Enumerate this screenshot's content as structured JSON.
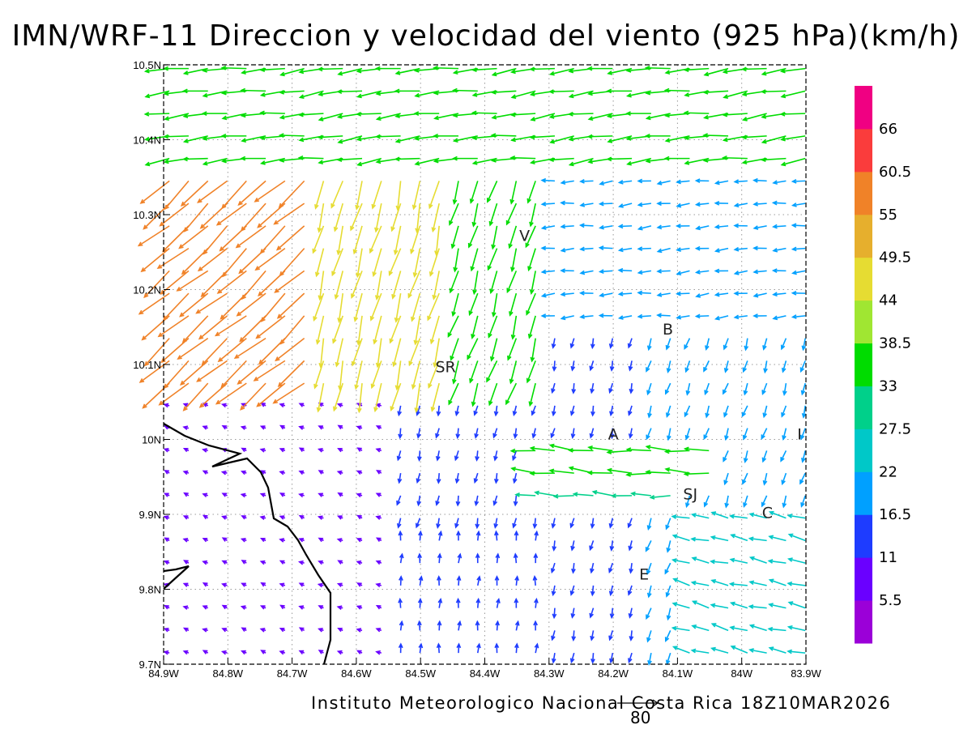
{
  "title": "IMN/WRF-11 Direccion y velocidad del viento (925 hPa)(km/h)",
  "footer": "Instituto Meteorologico Nacional Costa Rica 18Z10MAR2026",
  "reference_vector": {
    "label": "80",
    "value": 80
  },
  "map": {
    "lon_range": [
      -84.9,
      -83.9
    ],
    "lat_range": [
      9.7,
      10.5
    ],
    "grid": "dotted",
    "lon_ticks": [
      "84.9W",
      "84.8W",
      "84.7W",
      "84.6W",
      "84.5W",
      "84.4W",
      "84.3W",
      "84.2W",
      "84.1W",
      "84W",
      "83.9W"
    ],
    "lat_ticks": [
      "9.7N",
      "9.8N",
      "9.9N",
      "10N",
      "10.1N",
      "10.2N",
      "10.3N",
      "10.4N",
      "10.5N"
    ],
    "city_labels": [
      {
        "label": "V",
        "lon": -84.338,
        "lat": 10.265
      },
      {
        "label": "B",
        "lon": -84.115,
        "lat": 10.14
      },
      {
        "label": "SR",
        "lon": -84.461,
        "lat": 10.09
      },
      {
        "label": "A",
        "lon": -84.2,
        "lat": 10.0
      },
      {
        "label": "I",
        "lon": -83.91,
        "lat": 10.0
      },
      {
        "label": "SJ",
        "lon": -84.08,
        "lat": 9.92
      },
      {
        "label": "C",
        "lon": -83.96,
        "lat": 9.895
      },
      {
        "label": "E",
        "lon": -84.152,
        "lat": 9.813
      }
    ],
    "coastline_color": "#000000"
  },
  "colorbar": {
    "labels": [
      "5.5",
      "11",
      "16.5",
      "22",
      "27.5",
      "33",
      "38.5",
      "44",
      "49.5",
      "55",
      "60.5",
      "66"
    ],
    "colors": [
      "#9b00d8",
      "#6a00ff",
      "#1e3cff",
      "#00a0ff",
      "#00c8c8",
      "#00d08a",
      "#00dc00",
      "#a0e632",
      "#e6dc32",
      "#e6af2d",
      "#f08228",
      "#fa3c3c",
      "#f00082"
    ]
  },
  "chart_data": {
    "type": "vector-field",
    "variable": "Direccion y velocidad del viento (925 hPa)",
    "units": "km/h",
    "lon_range": [
      -84.9,
      -83.9
    ],
    "lat_range": [
      9.7,
      10.5
    ],
    "grid_step_deg": 0.03,
    "color_levels_kmh": [
      5.5,
      11,
      16.5,
      22,
      27.5,
      33,
      38.5,
      44,
      49.5,
      55,
      60.5,
      66
    ],
    "regimes": [
      {
        "region": "north band (10.35N-10.5N)",
        "direction": "from east",
        "speed_kmh": 38
      },
      {
        "region": "northwest corner",
        "direction": "from northeast",
        "speed_kmh": 57
      },
      {
        "region": "central west (84.7W-84.5W, 10.0N-10.35N)",
        "direction": "from north",
        "speed_kmh": 45
      },
      {
        "region": "east of 84.3W, 10.15N-10.35N",
        "direction": "from east",
        "speed_kmh": 20
      },
      {
        "region": "band 9.95N-10.0N, 84.35W-84.05W",
        "direction": "from east",
        "speed_kmh": 38
      },
      {
        "region": "band 9.9N-9.95N, 84.35W-84.1W",
        "direction": "from east",
        "speed_kmh": 31
      },
      {
        "region": "Pacific ocean southwest",
        "direction": "weak easterly",
        "speed_kmh": 6
      },
      {
        "region": "south-central (84.5W-84.2W, 9.7N-9.87N)",
        "direction": "from south",
        "speed_kmh": 14
      },
      {
        "region": "southeast (east of 84.1W, 9.7N-9.9N)",
        "direction": "from east",
        "speed_kmh": 27
      },
      {
        "region": "east side (east of 84.15W, 9.95N-10.1N)",
        "direction": "from northeast",
        "speed_kmh": 18
      }
    ]
  }
}
